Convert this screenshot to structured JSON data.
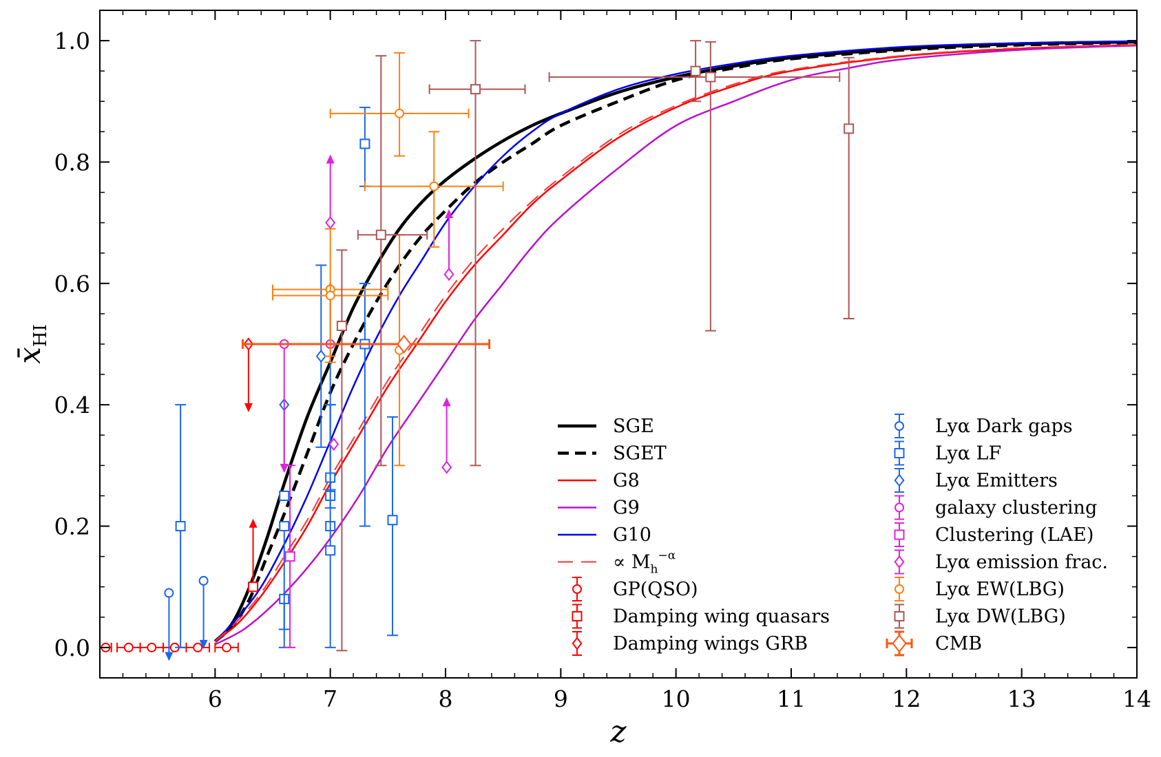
{
  "chart_data": {
    "type": "line",
    "xlabel": "z",
    "ylabel_main": "x̄",
    "ylabel_sub": "HI",
    "xlim": [
      5,
      14
    ],
    "ylim": [
      -0.05,
      1.05
    ],
    "xticks": [
      6,
      7,
      8,
      9,
      10,
      11,
      12,
      13,
      14
    ],
    "xtick_labels": [
      "6",
      "7",
      "8",
      "9",
      "10",
      "11",
      "12",
      "13",
      "14"
    ],
    "yticks": [
      0.0,
      0.2,
      0.4,
      0.6,
      0.8,
      1.0
    ],
    "ytick_labels": [
      "0.0",
      "0.2",
      "0.4",
      "0.6",
      "0.8",
      "1.0"
    ],
    "grid": false,
    "legend_placement": "bottom-right",
    "series": [
      {
        "name": "SGE",
        "color": "#000000",
        "style": "solid",
        "width": 4.5,
        "x": [
          6.0,
          6.15,
          6.3,
          6.45,
          6.6,
          6.8,
          7.0,
          7.2,
          7.4,
          7.6,
          7.8,
          8.0,
          8.25,
          8.5,
          8.75,
          9.0,
          9.5,
          10.0,
          10.5,
          11.0,
          12.0,
          13.0,
          14.0
        ],
        "y": [
          0.01,
          0.04,
          0.1,
          0.18,
          0.27,
          0.38,
          0.47,
          0.56,
          0.63,
          0.69,
          0.735,
          0.77,
          0.805,
          0.835,
          0.86,
          0.88,
          0.915,
          0.94,
          0.958,
          0.972,
          0.987,
          0.995,
          0.998
        ]
      },
      {
        "name": "SGET",
        "color": "#000000",
        "style": "dashed",
        "width": 4.5,
        "x": [
          6.0,
          6.15,
          6.3,
          6.45,
          6.6,
          6.8,
          7.0,
          7.2,
          7.4,
          7.6,
          7.8,
          8.0,
          8.25,
          8.5,
          8.75,
          9.0,
          9.5,
          10.0,
          10.5,
          11.0,
          12.0,
          13.0,
          14.0
        ],
        "y": [
          0.01,
          0.035,
          0.08,
          0.15,
          0.22,
          0.32,
          0.42,
          0.5,
          0.57,
          0.63,
          0.68,
          0.72,
          0.765,
          0.8,
          0.83,
          0.86,
          0.9,
          0.935,
          0.955,
          0.97,
          0.985,
          0.993,
          0.997
        ]
      },
      {
        "name": "G8",
        "color": "#ff0000",
        "style": "solid",
        "width": 2.5,
        "x": [
          6.0,
          6.2,
          6.4,
          6.6,
          6.8,
          7.0,
          7.25,
          7.5,
          7.75,
          8.0,
          8.25,
          8.5,
          8.75,
          9.0,
          9.5,
          10.0,
          10.5,
          11.0,
          12.0,
          13.0,
          14.0
        ],
        "y": [
          0.01,
          0.04,
          0.085,
          0.14,
          0.2,
          0.27,
          0.35,
          0.43,
          0.5,
          0.57,
          0.63,
          0.68,
          0.73,
          0.77,
          0.84,
          0.89,
          0.925,
          0.95,
          0.975,
          0.987,
          0.993
        ]
      },
      {
        "name": "G9",
        "color": "#bb11cc",
        "style": "solid",
        "width": 2.5,
        "x": [
          6.0,
          6.25,
          6.5,
          6.75,
          7.0,
          7.25,
          7.5,
          7.75,
          8.0,
          8.25,
          8.5,
          8.75,
          9.0,
          9.5,
          10.0,
          10.5,
          11.0,
          11.5,
          12.0,
          13.0,
          14.0
        ],
        "y": [
          0.005,
          0.03,
          0.07,
          0.12,
          0.18,
          0.25,
          0.33,
          0.4,
          0.47,
          0.54,
          0.6,
          0.66,
          0.71,
          0.79,
          0.86,
          0.9,
          0.935,
          0.955,
          0.97,
          0.985,
          0.992
        ]
      },
      {
        "name": "G10",
        "color": "#0000ee",
        "style": "solid",
        "width": 2.5,
        "x": [
          6.0,
          6.2,
          6.4,
          6.6,
          6.8,
          7.0,
          7.2,
          7.4,
          7.6,
          7.8,
          8.0,
          8.25,
          8.5,
          8.75,
          9.0,
          9.5,
          10.0,
          10.5,
          11.0,
          12.0,
          13.0,
          14.0
        ],
        "y": [
          0.01,
          0.05,
          0.1,
          0.17,
          0.25,
          0.34,
          0.43,
          0.51,
          0.58,
          0.64,
          0.7,
          0.76,
          0.81,
          0.85,
          0.88,
          0.92,
          0.945,
          0.962,
          0.975,
          0.99,
          0.996,
          0.999
        ]
      },
      {
        "name": "∝ M_h^{-α}",
        "color": "#ff3333",
        "style": "longdash",
        "width": 2,
        "x": [
          6.0,
          6.2,
          6.4,
          6.6,
          6.8,
          7.0,
          7.25,
          7.5,
          7.75,
          8.0,
          8.25,
          8.5,
          8.75,
          9.0,
          9.5,
          10.0,
          10.5,
          11.0,
          12.0,
          13.0,
          14.0
        ],
        "y": [
          0.01,
          0.045,
          0.09,
          0.15,
          0.21,
          0.28,
          0.36,
          0.44,
          0.51,
          0.58,
          0.64,
          0.69,
          0.735,
          0.775,
          0.845,
          0.893,
          0.928,
          0.952,
          0.976,
          0.988,
          0.993
        ]
      }
    ],
    "legend_left": [
      {
        "label": "SGE",
        "kind": "line",
        "color": "#000000",
        "style": "solid",
        "width": 4.5
      },
      {
        "label": "SGET",
        "kind": "line",
        "color": "#000000",
        "style": "dashed",
        "width": 4.5
      },
      {
        "label": "G8",
        "kind": "line",
        "color": "#ff0000",
        "style": "solid",
        "width": 2.5
      },
      {
        "label": "G9",
        "kind": "line",
        "color": "#bb11cc",
        "style": "solid",
        "width": 2.5
      },
      {
        "label": "G10",
        "kind": "line",
        "color": "#0000ee",
        "style": "solid",
        "width": 2.5
      },
      {
        "label": "∝ M",
        "sub": "h",
        "sup": "−α",
        "kind": "line",
        "color": "#ff3333",
        "style": "longdash",
        "width": 2
      },
      {
        "label": "GP(QSO)",
        "kind": "marker",
        "marker": "circle",
        "color": "#ff0000"
      },
      {
        "label": "Damping wing quasars",
        "kind": "marker",
        "marker": "square",
        "color": "#ff0000"
      },
      {
        "label": "Damping wings GRB",
        "kind": "marker",
        "marker": "diamond",
        "color": "#ff0000"
      }
    ],
    "legend_right": [
      {
        "label": "Lyα Dark gaps",
        "kind": "marker",
        "marker": "circle",
        "color": "#1a66ee"
      },
      {
        "label": "Lyα LF",
        "kind": "marker",
        "marker": "square",
        "color": "#1a66ee"
      },
      {
        "label": "Lyα Emitters",
        "kind": "marker",
        "marker": "diamond",
        "color": "#1a66ee"
      },
      {
        "label": "galaxy clustering",
        "kind": "marker",
        "marker": "circle",
        "color": "#e020e0"
      },
      {
        "label": "Clustering (LAE)",
        "kind": "marker",
        "marker": "square",
        "color": "#e020e0"
      },
      {
        "label": "Lyα emission frac.",
        "kind": "marker",
        "marker": "diamond",
        "color": "#e020e0"
      },
      {
        "label": "Lyα EW(LBG)",
        "kind": "marker",
        "marker": "circle",
        "color": "#ff7f0e"
      },
      {
        "label": "Lyα DW(LBG)",
        "kind": "marker",
        "marker": "square",
        "color": "#b05555"
      },
      {
        "label": "CMB",
        "kind": "marker",
        "marker": "bigdiamond",
        "color": "#ff5511"
      }
    ],
    "points": [
      {
        "set": "GP(QSO)",
        "marker": "circle",
        "color": "#ff0000",
        "x": 5.05,
        "y": 0.0,
        "xerr": [
          0.05,
          0.05
        ]
      },
      {
        "set": "GP(QSO)",
        "marker": "circle",
        "color": "#ff0000",
        "x": 5.25,
        "y": 0.0,
        "xerr": [
          0.1,
          0.1
        ]
      },
      {
        "set": "GP(QSO)",
        "marker": "circle",
        "color": "#ff0000",
        "x": 5.45,
        "y": 0.0,
        "xerr": [
          0.1,
          0.1
        ]
      },
      {
        "set": "GP(QSO)",
        "marker": "circle",
        "color": "#ff0000",
        "x": 5.65,
        "y": 0.0,
        "xerr": [
          0.1,
          0.1
        ]
      },
      {
        "set": "GP(QSO)",
        "marker": "circle",
        "color": "#ff0000",
        "x": 5.85,
        "y": 0.0,
        "xerr": [
          0.1,
          0.1
        ]
      },
      {
        "set": "GP(QSO)",
        "marker": "circle",
        "color": "#ff0000",
        "x": 6.1,
        "y": 0.0,
        "xerr": [
          0.1,
          0.1
        ]
      },
      {
        "set": "Damping wing quasars",
        "marker": "square",
        "color": "#ff0000",
        "x": 6.33,
        "y": 0.1,
        "limit": "lower",
        "limit_to": 0.21
      },
      {
        "set": "Damping wings GRB",
        "marker": "diamond",
        "color": "#ff0000",
        "x": 6.29,
        "y": 0.5,
        "limit": "upper",
        "limit_to": 0.39
      },
      {
        "set": "Lyα Dark gaps",
        "marker": "circle",
        "color": "#1a66ee",
        "x": 5.6,
        "y": 0.09,
        "limit": "upper",
        "limit_to": -0.02
      },
      {
        "set": "Lyα Dark gaps",
        "marker": "circle",
        "color": "#1a66ee",
        "x": 5.9,
        "y": 0.11,
        "limit": "upper",
        "limit_to": 0.0
      },
      {
        "set": "Lyα Dark gaps",
        "marker": "circle",
        "color": "#1a66ee",
        "x": 7.0,
        "y": 0.59,
        "yerr": [
          0.33,
          0.0
        ]
      },
      {
        "set": "Lyα LF",
        "marker": "square",
        "color": "#1a66ee",
        "x": 5.7,
        "y": 0.2,
        "yerr": [
          0.2,
          0.2
        ]
      },
      {
        "set": "Lyα LF",
        "marker": "square",
        "color": "#1a66ee",
        "x": 6.6,
        "y": 0.08,
        "yerr": [
          0.05,
          0.0
        ]
      },
      {
        "set": "Lyα LF",
        "marker": "square",
        "color": "#1a66ee",
        "x": 6.6,
        "y": 0.2,
        "yerr": [
          0.2,
          0.0
        ]
      },
      {
        "set": "Lyα LF",
        "marker": "square",
        "color": "#1a66ee",
        "x": 6.6,
        "y": 0.25,
        "yerr": [
          0.0,
          0.0
        ]
      },
      {
        "set": "Lyα LF",
        "marker": "square",
        "color": "#1a66ee",
        "x": 7.0,
        "y": 0.28,
        "yerr": [
          0.05,
          0.12
        ]
      },
      {
        "set": "Lyα LF",
        "marker": "square",
        "color": "#1a66ee",
        "x": 7.0,
        "y": 0.25,
        "yerr": [
          0.0,
          0.0
        ]
      },
      {
        "set": "Lyα LF",
        "marker": "square",
        "color": "#1a66ee",
        "x": 7.0,
        "y": 0.2,
        "yerr": [
          0.0,
          0.0
        ]
      },
      {
        "set": "Lyα LF",
        "marker": "square",
        "color": "#1a66ee",
        "x": 7.0,
        "y": 0.16,
        "yerr": [
          0.16,
          0.24
        ]
      },
      {
        "set": "Lyα LF",
        "marker": "square",
        "color": "#1a66ee",
        "x": 7.3,
        "y": 0.5,
        "yerr": [
          0.3,
          0.1
        ]
      },
      {
        "set": "Lyα LF",
        "marker": "square",
        "color": "#1a66ee",
        "x": 7.3,
        "y": 0.83,
        "yerr": [
          0.07,
          0.06
        ]
      },
      {
        "set": "Lyα LF",
        "marker": "square",
        "color": "#1a66ee",
        "x": 7.54,
        "y": 0.21,
        "yerr": [
          0.19,
          0.17
        ]
      },
      {
        "set": "Lyα Emitters",
        "marker": "diamond",
        "color": "#1a66ee",
        "x": 6.6,
        "y": 0.4,
        "limit": "upper",
        "limit_to": 0.29
      },
      {
        "set": "Lyα Emitters",
        "marker": "diamond",
        "color": "#1a66ee",
        "x": 6.92,
        "y": 0.48,
        "yerr": [
          0.15,
          0.15
        ]
      },
      {
        "set": "galaxy clustering",
        "marker": "circle",
        "color": "#e020e0",
        "x": 6.6,
        "y": 0.5,
        "limit": "upper",
        "limit_to": 0.29
      },
      {
        "set": "galaxy clustering",
        "marker": "circle",
        "color": "#e020e0",
        "x": 7.0,
        "y": 0.5,
        "limit": "lower",
        "limit_to": 0.6
      },
      {
        "set": "Clustering (LAE)",
        "marker": "square",
        "color": "#e020e0",
        "x": 6.65,
        "y": 0.15,
        "yerr": [
          0.15,
          0.15
        ]
      },
      {
        "set": "Lyα emission frac.",
        "marker": "diamond",
        "color": "#e020e0",
        "x": 7.0,
        "y": 0.7,
        "limit": "lower",
        "limit_to": 0.81
      },
      {
        "set": "Lyα emission frac.",
        "marker": "diamond",
        "color": "#e020e0",
        "x": 7.03,
        "y": 0.335,
        "yerr": [
          0.0,
          0.0
        ]
      },
      {
        "set": "Lyα emission frac.",
        "marker": "diamond",
        "color": "#e020e0",
        "x": 8.03,
        "y": 0.615,
        "limit": "lower",
        "limit_to": 0.72
      },
      {
        "set": "Lyα emission frac.",
        "marker": "diamond",
        "color": "#e020e0",
        "x": 8.01,
        "y": 0.297,
        "limit": "lower",
        "limit_to": 0.41
      },
      {
        "set": "Lyα EW(LBG)",
        "marker": "circle",
        "color": "#ff7f0e",
        "x": 7.0,
        "y": 0.59,
        "xerr": [
          0.5,
          0.5
        ],
        "yerr": [
          0.12,
          0.0
        ]
      },
      {
        "set": "Lyα EW(LBG)",
        "marker": "circle",
        "color": "#ff7f0e",
        "x": 7.0,
        "y": 0.58,
        "xerr": [
          0.5,
          0.5
        ],
        "yerr": [
          0.1,
          0.11
        ]
      },
      {
        "set": "Lyα EW(LBG)",
        "marker": "circle",
        "color": "#ff7f0e",
        "x": 7.6,
        "y": 0.88,
        "xerr": [
          0.6,
          0.6
        ],
        "yerr": [
          0.07,
          0.1
        ]
      },
      {
        "set": "Lyα EW(LBG)",
        "marker": "circle",
        "color": "#ff7f0e",
        "x": 7.6,
        "y": 0.49,
        "yerr": [
          0.19,
          0.19
        ]
      },
      {
        "set": "Lyα EW(LBG)",
        "marker": "circle",
        "color": "#ff7f0e",
        "x": 7.9,
        "y": 0.76,
        "xerr": [
          0.6,
          0.6
        ],
        "yerr": [
          0.1,
          0.09
        ]
      },
      {
        "set": "Lyα DW(LBG)",
        "marker": "square",
        "color": "#b05555",
        "x": 7.1,
        "y": 0.53,
        "yerr": [
          0.535,
          0.125
        ]
      },
      {
        "set": "Lyα DW(LBG)",
        "marker": "square",
        "color": "#b05555",
        "x": 7.44,
        "y": 0.68,
        "xerr": [
          0.2,
          0.4
        ],
        "yerr": [
          0.38,
          0.295
        ]
      },
      {
        "set": "Lyα DW(LBG)",
        "marker": "square",
        "color": "#b05555",
        "x": 8.26,
        "y": 0.92,
        "xerr": [
          0.4,
          0.43
        ],
        "yerr": [
          0.62,
          0.08
        ]
      },
      {
        "set": "Lyα DW(LBG)",
        "marker": "square",
        "color": "#b05555",
        "x": 10.17,
        "y": 0.95,
        "yerr": [
          0.05,
          0.05
        ]
      },
      {
        "set": "Lyα DW(LBG)",
        "marker": "square",
        "color": "#b05555",
        "x": 10.3,
        "y": 0.94,
        "xerr": [
          1.4,
          1.12
        ],
        "yerr": [
          0.418,
          0.058
        ]
      },
      {
        "set": "Lyα DW(LBG)",
        "marker": "square",
        "color": "#b05555",
        "x": 11.5,
        "y": 0.855,
        "yerr": [
          0.313,
          0.117
        ]
      },
      {
        "set": "CMB",
        "marker": "bigdiamond",
        "color": "#ff5511",
        "x": 7.64,
        "y": 0.5,
        "xerr": [
          1.4,
          0.74
        ]
      }
    ]
  }
}
